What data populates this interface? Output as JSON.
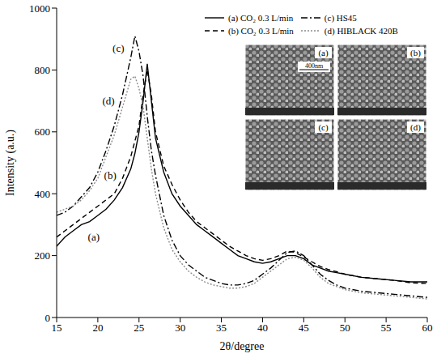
{
  "chart_data": {
    "type": "line",
    "x_label": "2θ/degree",
    "y_label": "Intensity (a.u.)",
    "legend": "upper right",
    "grid": false,
    "xlim": [
      15,
      60
    ],
    "xticks": [
      15,
      20,
      25,
      30,
      35,
      40,
      45,
      50,
      55,
      60
    ],
    "ylim": [
      0,
      1000
    ],
    "yticks": [
      0,
      200,
      400,
      600,
      800,
      1000
    ],
    "x": [
      15,
      16,
      17,
      18,
      19,
      20,
      21,
      22,
      23,
      24,
      24.5,
      25,
      25.5,
      26,
      26.5,
      27,
      28,
      29,
      30,
      31,
      32,
      33,
      34,
      35,
      36,
      37,
      38,
      39,
      40,
      41,
      42,
      43,
      44,
      45,
      46,
      47,
      48,
      49,
      50,
      52,
      54,
      56,
      58,
      60
    ],
    "series": [
      {
        "name": "(a) CO₂ 0.3 L/min",
        "color": "#000000",
        "line_style": "solid",
        "values": [
          230,
          260,
          280,
          300,
          310,
          330,
          350,
          380,
          420,
          480,
          530,
          600,
          700,
          820,
          700,
          580,
          470,
          400,
          360,
          330,
          300,
          280,
          260,
          240,
          220,
          200,
          190,
          180,
          175,
          180,
          190,
          200,
          200,
          190,
          170,
          160,
          150,
          145,
          140,
          130,
          125,
          120,
          115,
          115
        ]
      },
      {
        "name": "(b) CO₂ 0.3 L/min",
        "color": "#000000",
        "line_style": "dashed",
        "values": [
          260,
          280,
          300,
          320,
          340,
          360,
          380,
          400,
          450,
          520,
          570,
          620,
          720,
          800,
          720,
          600,
          490,
          430,
          380,
          340,
          310,
          290,
          270,
          250,
          230,
          215,
          200,
          190,
          185,
          190,
          200,
          215,
          210,
          195,
          180,
          165,
          155,
          148,
          140,
          130,
          125,
          120,
          112,
          110
        ]
      },
      {
        "name": "(c) HS45",
        "color": "#000000",
        "line_style": "dashdot",
        "values": [
          330,
          340,
          360,
          390,
          420,
          470,
          540,
          620,
          720,
          840,
          910,
          860,
          780,
          650,
          540,
          460,
          330,
          250,
          200,
          170,
          150,
          130,
          120,
          110,
          105,
          105,
          110,
          120,
          140,
          160,
          185,
          210,
          215,
          200,
          170,
          140,
          120,
          105,
          95,
          85,
          80,
          75,
          70,
          65
        ]
      },
      {
        "name": "(d) HIBLACK 420B",
        "color": "#8c8c8c",
        "line_style": "dotted",
        "values": [
          340,
          350,
          360,
          380,
          410,
          450,
          520,
          590,
          680,
          770,
          780,
          740,
          680,
          580,
          480,
          400,
          290,
          220,
          180,
          150,
          130,
          115,
          105,
          100,
          95,
          95,
          100,
          110,
          130,
          150,
          170,
          190,
          195,
          185,
          160,
          130,
          110,
          100,
          90,
          80,
          75,
          70,
          65,
          60
        ]
      }
    ],
    "annotations": [
      {
        "text": "(c)",
        "x": 22.5,
        "y": 870
      },
      {
        "text": "(d)",
        "x": 21.3,
        "y": 700
      },
      {
        "text": "(b)",
        "x": 21.5,
        "y": 460
      },
      {
        "text": "(a)",
        "x": 19.5,
        "y": 260
      }
    ],
    "inset": {
      "panels": [
        "(a)",
        "(b)",
        "(c)",
        "(d)"
      ],
      "scale_bar": "400nm"
    }
  }
}
